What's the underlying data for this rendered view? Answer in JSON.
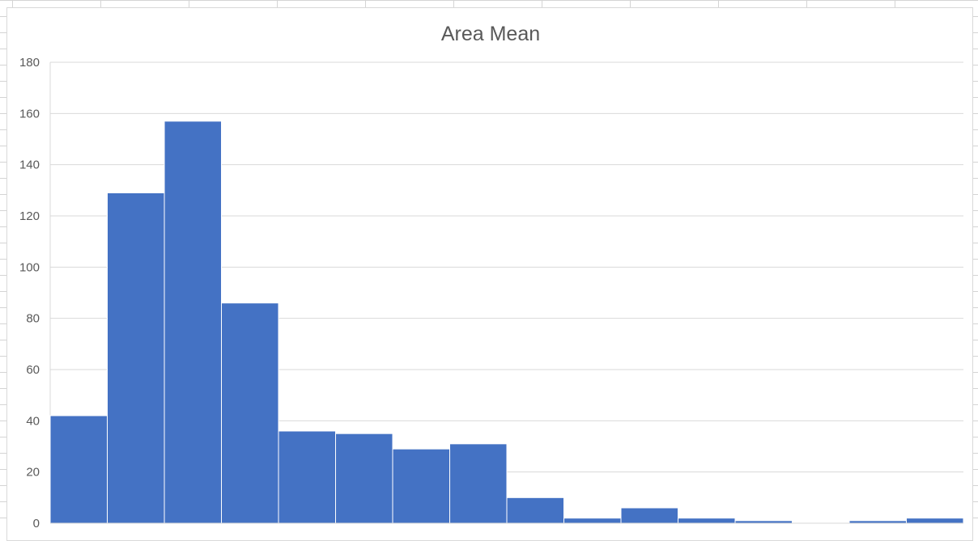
{
  "chart_data": {
    "type": "bar",
    "title": "Area Mean",
    "xlabel": "",
    "ylabel": "",
    "ylim": [
      0,
      180
    ],
    "yticks": [
      0,
      20,
      40,
      60,
      80,
      100,
      120,
      140,
      160,
      180
    ],
    "grid": true,
    "legend": "none",
    "bar_color": "#4472c4",
    "gridline_color": "#d9d9d9",
    "values": [
      42,
      129,
      157,
      86,
      36,
      35,
      29,
      31,
      10,
      2,
      6,
      2,
      1,
      0,
      1,
      2
    ]
  }
}
